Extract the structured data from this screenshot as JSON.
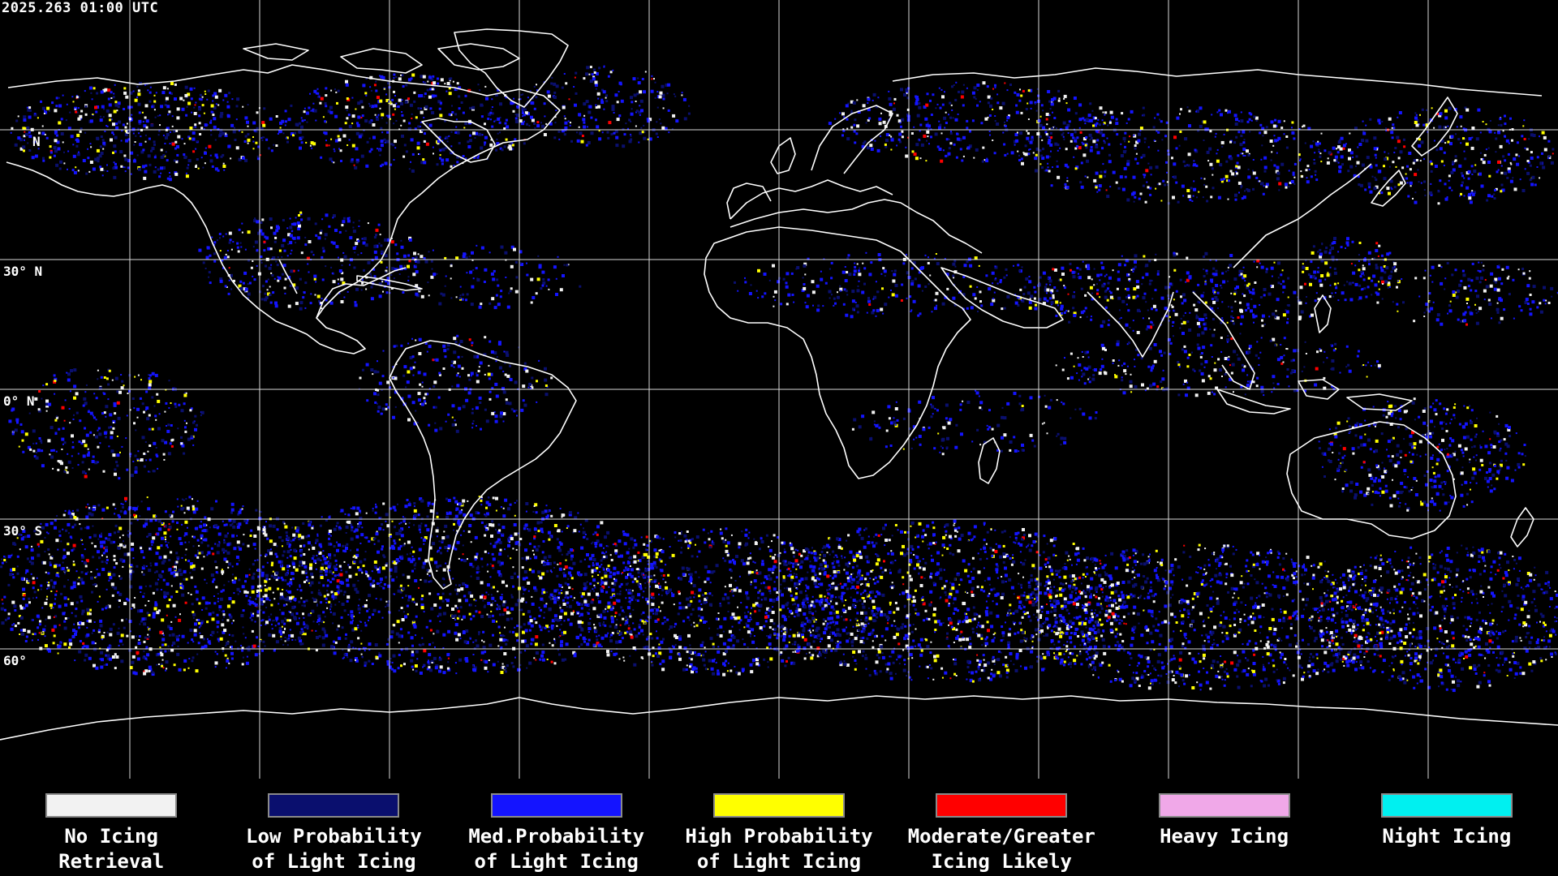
{
  "header": {
    "timestamp": "2025.263 01:00 UTC"
  },
  "map": {
    "lat_labels": [
      {
        "text": "N",
        "lat": 60
      },
      {
        "text": "30° N",
        "lat": 30
      },
      {
        "text": "0° N",
        "lat": 0
      },
      {
        "text": "30° S",
        "lat": -30
      },
      {
        "text": "60°",
        "lat": -60
      }
    ],
    "graticule_step_deg": 30,
    "colors": {
      "no_icing": "#f2f2f2",
      "low": "#0a0f6e",
      "med": "#1414ff",
      "high": "#ffff00",
      "moderate": "#ff0000",
      "heavy": "#f0a8e8",
      "night": "#00f0f0",
      "coast": "#ffffff",
      "grid": "#ffffff"
    }
  },
  "legend": {
    "items": [
      {
        "line1": "No Icing",
        "line2": "Retrieval",
        "color": "#f2f2f2"
      },
      {
        "line1": "Low Probability",
        "line2": "of Light Icing",
        "color": "#0a0f6e"
      },
      {
        "line1": "Med.Probability",
        "line2": "of Light Icing",
        "color": "#1414ff"
      },
      {
        "line1": "High Probability",
        "line2": "of Light Icing",
        "color": "#ffff00"
      },
      {
        "line1": "Moderate/Greater",
        "line2": "Icing Likely",
        "color": "#ff0000"
      },
      {
        "line1": "Heavy Icing",
        "line2": "",
        "color": "#f0a8e8"
      },
      {
        "line1": "Night Icing",
        "line2": "",
        "color": "#00f0f0"
      }
    ]
  }
}
